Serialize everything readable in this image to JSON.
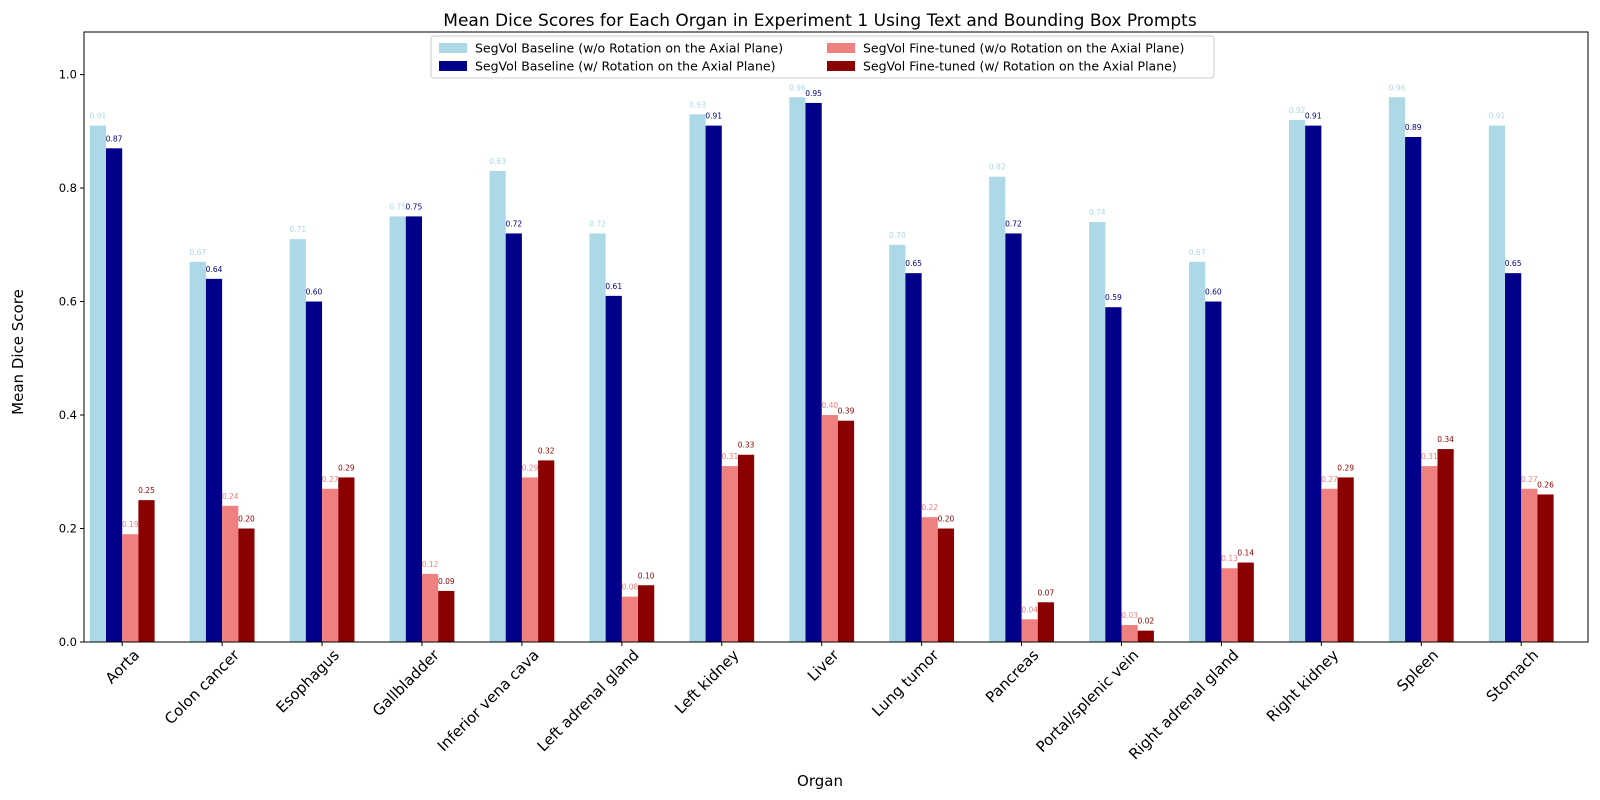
{
  "chart_data": {
    "type": "bar",
    "title": "Mean Dice Scores for Each Organ in Experiment 1 Using Text and Bounding Box Prompts",
    "xlabel": "Organ",
    "ylabel": "Mean Dice Score",
    "ylim": [
      0,
      1.075
    ],
    "yticks": [
      "0.0",
      "0.2",
      "0.4",
      "0.6",
      "0.8",
      "1.0"
    ],
    "grid": false,
    "legend_position": "top-center",
    "categories": [
      "Aorta",
      "Colon cancer",
      "Esophagus",
      "Gallbladder",
      "Inferior vena cava",
      "Left adrenal gland",
      "Left kidney",
      "Liver",
      "Lung tumor",
      "Pancreas",
      "Portal/splenic vein",
      "Right adrenal gland",
      "Right kidney",
      "Spleen",
      "Stomach"
    ],
    "series": [
      {
        "name": "SegVol Baseline (w/o Rotation on the Axial Plane)",
        "color": "#add8e6",
        "values": [
          0.91,
          0.67,
          0.71,
          0.75,
          0.83,
          0.72,
          0.93,
          0.96,
          0.7,
          0.82,
          0.74,
          0.67,
          0.92,
          0.96,
          0.91
        ],
        "labels": [
          "0.91",
          "0.67",
          "0.71",
          "0.75",
          "0.83",
          "0.72",
          "0.93",
          "0.96",
          "0.70",
          "0.82",
          "0.74",
          "0.67",
          "0.92",
          "0.96",
          "0.91"
        ]
      },
      {
        "name": "SegVol Baseline (w/ Rotation on the Axial Plane)",
        "color": "#00008b",
        "values": [
          0.87,
          0.64,
          0.6,
          0.75,
          0.72,
          0.61,
          0.91,
          0.95,
          0.65,
          0.72,
          0.59,
          0.6,
          0.91,
          0.89,
          0.65
        ],
        "labels": [
          "0.87",
          "0.64",
          "0.60",
          "0.75",
          "0.72",
          "0.61",
          "0.91",
          "0.95",
          "0.65",
          "0.72",
          "0.59",
          "0.60",
          "0.91",
          "0.89",
          "0.65"
        ]
      },
      {
        "name": "SegVol Fine-tuned (w/o Rotation on the Axial Plane)",
        "color": "#f08080",
        "values": [
          0.19,
          0.24,
          0.27,
          0.12,
          0.29,
          0.08,
          0.31,
          0.4,
          0.22,
          0.04,
          0.03,
          0.13,
          0.27,
          0.31,
          0.27
        ],
        "labels": [
          "0.19",
          "0.24",
          "0.27",
          "0.12",
          "0.29",
          "0.08",
          "0.31",
          "0.40",
          "0.22",
          "0.04",
          "0.03",
          "0.13",
          "0.27",
          "0.31",
          "0.27"
        ]
      },
      {
        "name": "SegVol Fine-tuned (w/ Rotation on the Axial Plane)",
        "color": "#8b0000",
        "values": [
          0.25,
          0.2,
          0.29,
          0.09,
          0.32,
          0.1,
          0.33,
          0.39,
          0.2,
          0.07,
          0.02,
          0.14,
          0.29,
          0.34,
          0.26
        ],
        "labels": [
          "0.25",
          "0.20",
          "0.29",
          "0.09",
          "0.32",
          "0.10",
          "0.33",
          "0.39",
          "0.20",
          "0.07",
          "0.02",
          "0.14",
          "0.29",
          "0.34",
          "0.26"
        ]
      }
    ]
  }
}
